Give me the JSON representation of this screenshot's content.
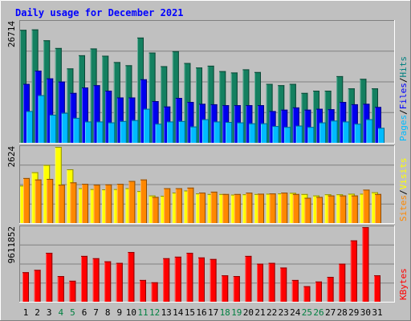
{
  "chart_data": [
    {
      "type": "bar",
      "title": "Daily usage for December 2021",
      "categories": [
        "1",
        "2",
        "3",
        "4",
        "5",
        "6",
        "7",
        "8",
        "9",
        "10",
        "11",
        "12",
        "13",
        "14",
        "15",
        "16",
        "17",
        "18",
        "19",
        "20",
        "21",
        "22",
        "23",
        "24",
        "25",
        "26",
        "27",
        "28",
        "29",
        "30",
        "31"
      ],
      "weekend_days": [
        4,
        5,
        11,
        12,
        18,
        19,
        25,
        26
      ],
      "ymax_label": "26714",
      "ylim": [
        0,
        26714
      ],
      "right_labels": [
        {
          "text": "Pages",
          "color": "#00bbff"
        },
        {
          "text": "Files",
          "color": "#0000ff"
        },
        {
          "text": "Hits",
          "color": "#008080"
        }
      ],
      "series": [
        {
          "name": "Hits",
          "color": "#148060",
          "values": [
            24900,
            25000,
            22600,
            20900,
            16400,
            19300,
            20800,
            19200,
            17800,
            17100,
            23200,
            19900,
            16900,
            20200,
            17600,
            16600,
            17000,
            15800,
            15500,
            16200,
            15600,
            13000,
            12700,
            13000,
            11000,
            11500,
            11500,
            14700,
            12000,
            14100,
            12000
          ]
        },
        {
          "name": "Files",
          "color": "#0000ee",
          "values": [
            13000,
            15900,
            14200,
            13500,
            11000,
            12200,
            12700,
            11500,
            10000,
            10000,
            14000,
            9200,
            8000,
            9900,
            9000,
            8600,
            8500,
            8300,
            8300,
            8300,
            8300,
            7000,
            7300,
            7800,
            7300,
            7500,
            7400,
            9000,
            8500,
            8600,
            7900
          ]
        },
        {
          "name": "Pages",
          "color": "#00bbff",
          "values": [
            7000,
            10500,
            6200,
            6600,
            5500,
            4700,
            4700,
            4500,
            4800,
            5000,
            7500,
            4200,
            4700,
            4800,
            3600,
            5200,
            4700,
            4600,
            4500,
            4300,
            4300,
            3700,
            3500,
            3800,
            3500,
            4500,
            4900,
            4700,
            4200,
            5200,
            3300
          ]
        }
      ]
    },
    {
      "type": "bar",
      "ymax_label": "2624",
      "ylim": [
        0,
        2624
      ],
      "right_labels": [
        {
          "text": "Sites",
          "color": "#ff8800"
        },
        {
          "text": "Visits",
          "color": "#ffff00"
        }
      ],
      "series": [
        {
          "name": "Visits",
          "color": "#ffff00",
          "values": [
            1290,
            1750,
            2000,
            2624,
            1850,
            1200,
            1170,
            1160,
            1170,
            1200,
            1100,
            950,
            940,
            1050,
            1120,
            1020,
            1000,
            1000,
            980,
            990,
            1000,
            1010,
            1020,
            1040,
            1000,
            950,
            990,
            990,
            1010,
            1010,
            1060
          ]
        },
        {
          "name": "Sites",
          "color": "#ff8800",
          "values": [
            1550,
            1500,
            1520,
            1320,
            1400,
            1350,
            1320,
            1330,
            1350,
            1450,
            1500,
            900,
            1200,
            1200,
            1220,
            1050,
            1080,
            1000,
            1000,
            1050,
            1010,
            1020,
            1050,
            1000,
            870,
            900,
            950,
            950,
            950,
            1150,
            1000
          ]
        }
      ]
    },
    {
      "type": "bar",
      "ymax_label": "9611852",
      "ylim": [
        0,
        9611852
      ],
      "right_labels": [
        {
          "text": "KBytes",
          "color": "#ff0000"
        }
      ],
      "series": [
        {
          "name": "KBytes",
          "color": "#ff0000",
          "values": [
            3800000,
            4100000,
            6300000,
            3300000,
            2700000,
            5900000,
            5600000,
            5200000,
            5000000,
            6400000,
            2800000,
            2500000,
            5600000,
            5800000,
            6300000,
            5700000,
            5500000,
            3400000,
            3300000,
            5900000,
            4900000,
            5000000,
            4400000,
            2800000,
            2000000,
            2600000,
            3200000,
            4900000,
            7900000,
            9600000,
            3400000
          ]
        }
      ]
    }
  ]
}
